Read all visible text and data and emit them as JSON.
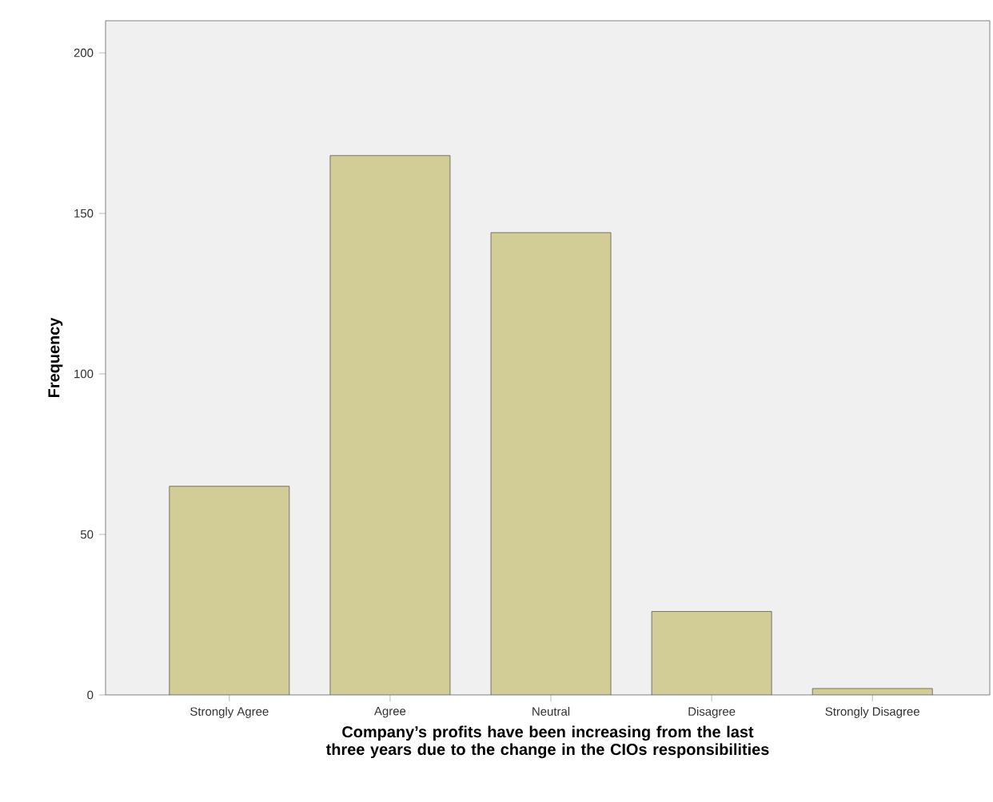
{
  "chart_data": {
    "type": "bar",
    "xlabel": "Company’s profits have been increasing from the last three years due to the change in the CIOs responsibilities",
    "ylabel": "Frequency",
    "categories": [
      "Strongly Agree",
      "Agree",
      "Neutral",
      "Disagree",
      "Strongly Disagree"
    ],
    "values": [
      65,
      168,
      144,
      26,
      2
    ],
    "color": "#d2cd96",
    "ylim": [
      0,
      210
    ],
    "yticks": [
      0,
      50,
      100,
      150,
      200
    ]
  }
}
